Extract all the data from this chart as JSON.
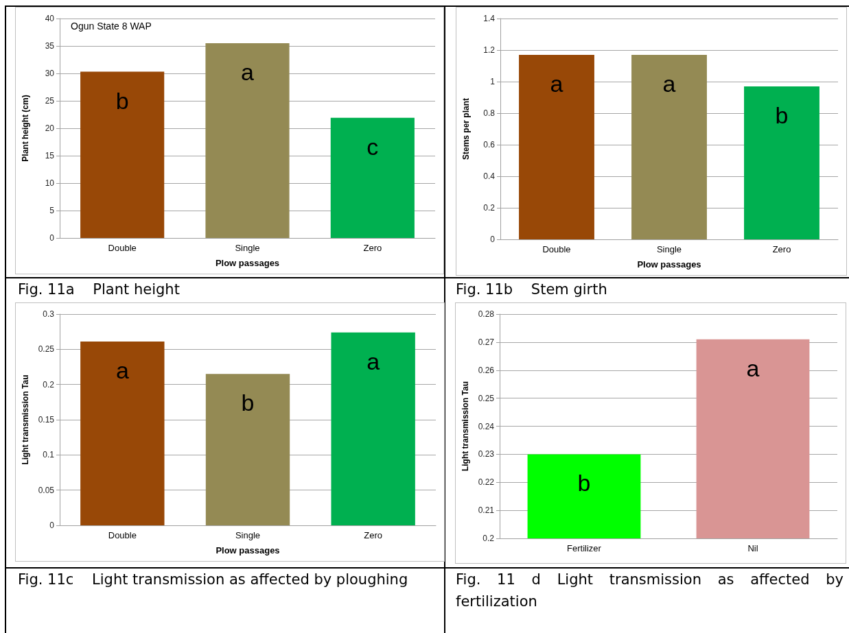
{
  "chart_data": [
    {
      "type": "bar",
      "title": "Fig. 11a    Plant height",
      "xlabel": "Plow passages",
      "ylabel": "Plant height (cm)",
      "categories": [
        "Double",
        "Single",
        "Zero"
      ],
      "values": [
        30.3,
        35.5,
        21.9
      ],
      "colors": [
        "#984807",
        "#948a54",
        "#00b050"
      ],
      "ylim": [
        0,
        40
      ],
      "yticks": [
        0,
        5,
        10,
        15,
        20,
        25,
        30,
        35,
        40
      ],
      "grid": "y",
      "annotations": [
        "Ogun State 8 WAP",
        {
          "text": "b",
          "x": "Double",
          "y": 30.3
        },
        {
          "text": "a",
          "x": "Single",
          "y": 35.5
        },
        {
          "text": "c",
          "x": "Zero",
          "y": 21.9
        }
      ]
    },
    {
      "type": "bar",
      "title": "Fig. 11b    Stem girth",
      "xlabel": "Plow passages",
      "ylabel": "Stems per plant",
      "categories": [
        "Double",
        "Single",
        "Zero"
      ],
      "values": [
        1.17,
        1.17,
        0.97
      ],
      "colors": [
        "#984807",
        "#948a54",
        "#00b050"
      ],
      "ylim": [
        0,
        1.4
      ],
      "yticks": [
        0,
        0.2,
        0.4,
        0.6,
        0.8,
        1,
        1.2,
        1.4
      ],
      "grid": "y",
      "annotations": [
        {
          "text": "a",
          "x": "Double",
          "y": 1.17
        },
        {
          "text": "a",
          "x": "Single",
          "y": 1.17
        },
        {
          "text": "b",
          "x": "Zero",
          "y": 0.97
        }
      ]
    },
    {
      "type": "bar",
      "title": "Fig. 11c    Light transmission as affected by ploughing",
      "xlabel": "Plow passages",
      "ylabel": "Light transmission Tau",
      "categories": [
        "Double",
        "Single",
        "Zero"
      ],
      "values": [
        0.261,
        0.215,
        0.274
      ],
      "colors": [
        "#984807",
        "#948a54",
        "#00b050"
      ],
      "ylim": [
        0,
        0.3
      ],
      "yticks": [
        0,
        0.05,
        0.1,
        0.15,
        0.2,
        0.25,
        0.3
      ],
      "grid": "y",
      "annotations": [
        {
          "text": "a",
          "x": "Double",
          "y": 0.261
        },
        {
          "text": "b",
          "x": "Single",
          "y": 0.215
        },
        {
          "text": "a",
          "x": "Zero",
          "y": 0.274
        }
      ]
    },
    {
      "type": "bar",
      "title": "Fig. 11 d Light transmission as affected by fertilization",
      "ylabel": "Light transmission Tau",
      "categories": [
        "Fertilizer",
        "Nil"
      ],
      "values": [
        0.23,
        0.271
      ],
      "colors": [
        "#00ff00",
        "#d99594"
      ],
      "ylim": [
        0.2,
        0.28
      ],
      "yticks": [
        0.2,
        0.21,
        0.22,
        0.23,
        0.24,
        0.25,
        0.26,
        0.27,
        0.28
      ],
      "grid": "y",
      "annotations": [
        {
          "text": "b",
          "x": "Fertilizer",
          "y": 0.23
        },
        {
          "text": "a",
          "x": "Nil",
          "y": 0.271
        }
      ]
    }
  ]
}
